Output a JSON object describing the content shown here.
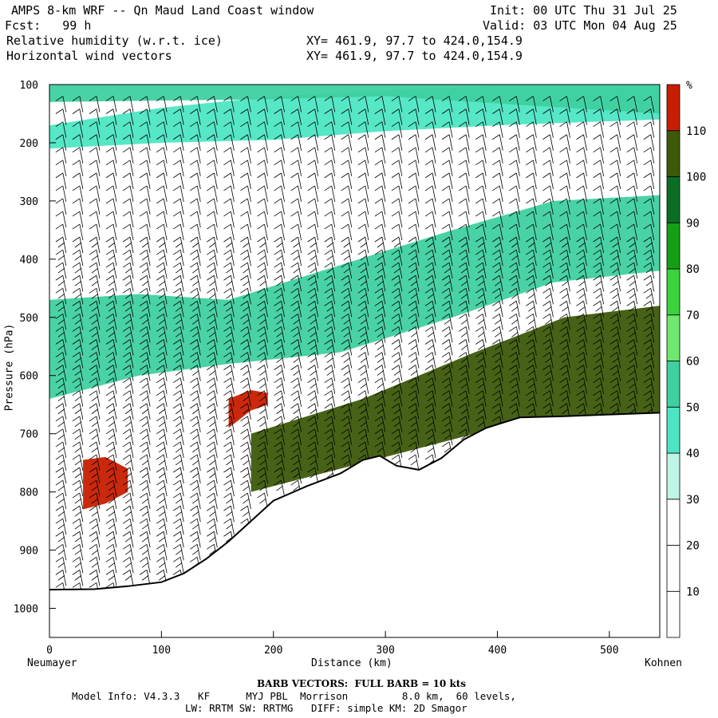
{
  "header": {
    "title": "AMPS 8-km WRF -- Qn Maud Land Coast window",
    "fcst": "Fcst:   99 h",
    "field1": "Relative humidity (w.r.t. ice)",
    "field2": "Horizontal wind vectors",
    "init": "Init: 00 UTC Thu 31 Jul 25",
    "valid": "Valid: 03 UTC Mon 04 Aug 25",
    "xy1": "XY= 461.9, 97.7 to 424.0,154.9",
    "xy2": "XY= 461.9, 97.7 to 424.0,154.9"
  },
  "footer": {
    "barb_note": "BARB VECTORS:  FULL BARB = 10 kts",
    "model_line1": "Model Info: V4.3.3   KF      MYJ PBL  Morrison         8.0 km,  60 levels,",
    "model_line2": "LW: RRTM SW: RRTMG   DIFF: simple KM: 2D Smagor"
  },
  "chart_data": {
    "type": "heatmap",
    "title": "Relative humidity (w.r.t. ice)",
    "xlabel": "Distance (km)",
    "ylabel": "Pressure (hPa)",
    "x_ticks": [
      0,
      100,
      200,
      300,
      400,
      500
    ],
    "y_ticks": [
      100,
      200,
      300,
      400,
      500,
      600,
      700,
      800,
      900,
      1000
    ],
    "xlim": [
      0,
      545
    ],
    "ylim": [
      100,
      1050
    ],
    "x_endpoints": {
      "left": "Neumayer",
      "right": "Kohnen"
    },
    "colorbar": {
      "unit": "%",
      "levels": [
        10,
        20,
        30,
        40,
        50,
        60,
        70,
        80,
        90,
        100,
        110
      ],
      "colors": [
        "#ffffff",
        "#ffffff",
        "#ffffff",
        "#bff5e6",
        "#4de6c4",
        "#3fd0a0",
        "#6ee86e",
        "#3cd23c",
        "#14a014",
        "#0b6e25",
        "#3d5a0a",
        "#c81e00"
      ]
    },
    "terrain_surface_hPa": [
      [
        0,
        968
      ],
      [
        40,
        967
      ],
      [
        70,
        962
      ],
      [
        100,
        955
      ],
      [
        120,
        940
      ],
      [
        140,
        915
      ],
      [
        160,
        885
      ],
      [
        180,
        850
      ],
      [
        200,
        815
      ],
      [
        230,
        790
      ],
      [
        260,
        768
      ],
      [
        280,
        745
      ],
      [
        295,
        738
      ],
      [
        310,
        755
      ],
      [
        330,
        762
      ],
      [
        350,
        742
      ],
      [
        370,
        710
      ],
      [
        390,
        690
      ],
      [
        420,
        672
      ],
      [
        460,
        670
      ],
      [
        500,
        667
      ],
      [
        545,
        664
      ]
    ],
    "rh_regions": [
      {
        "level": 40,
        "top_hPa": [
          [
            0,
            170
          ],
          [
            100,
            140
          ],
          [
            200,
            120
          ],
          [
            300,
            110
          ],
          [
            400,
            100
          ],
          [
            545,
            100
          ]
        ],
        "bottom_hPa": [
          [
            0,
            210
          ],
          [
            100,
            200
          ],
          [
            200,
            195
          ],
          [
            300,
            180
          ],
          [
            400,
            170
          ],
          [
            545,
            160
          ]
        ]
      },
      {
        "level": 50,
        "top_hPa": [
          [
            0,
            100
          ],
          [
            200,
            100
          ],
          [
            300,
            100
          ],
          [
            420,
            100
          ],
          [
            545,
            100
          ]
        ],
        "bottom_hPa": [
          [
            0,
            130
          ],
          [
            200,
            125
          ],
          [
            300,
            120
          ],
          [
            420,
            135
          ],
          [
            545,
            150
          ]
        ]
      },
      {
        "level": 50,
        "top_hPa": [
          [
            0,
            470
          ],
          [
            80,
            460
          ],
          [
            160,
            470
          ],
          [
            260,
            410
          ],
          [
            360,
            350
          ],
          [
            450,
            300
          ],
          [
            545,
            290
          ]
        ],
        "bottom_hPa": [
          [
            0,
            640
          ],
          [
            80,
            600
          ],
          [
            160,
            580
          ],
          [
            260,
            560
          ],
          [
            360,
            500
          ],
          [
            450,
            440
          ],
          [
            545,
            420
          ]
        ]
      },
      {
        "level": 100,
        "top_hPa": [
          [
            180,
            700
          ],
          [
            280,
            640
          ],
          [
            380,
            560
          ],
          [
            460,
            500
          ],
          [
            545,
            480
          ]
        ],
        "bottom_hPa": [
          [
            180,
            800
          ],
          [
            280,
            750
          ],
          [
            380,
            700
          ],
          [
            460,
            670
          ],
          [
            545,
            664
          ]
        ]
      },
      {
        "level": 110,
        "top_hPa": [
          [
            30,
            745
          ],
          [
            50,
            740
          ],
          [
            70,
            760
          ]
        ],
        "bottom_hPa": [
          [
            30,
            830
          ],
          [
            50,
            820
          ],
          [
            70,
            800
          ]
        ]
      },
      {
        "level": 110,
        "top_hPa": [
          [
            160,
            640
          ],
          [
            180,
            625
          ],
          [
            195,
            630
          ]
        ],
        "bottom_hPa": [
          [
            160,
            690
          ],
          [
            180,
            660
          ],
          [
            195,
            650
          ]
        ]
      }
    ]
  }
}
